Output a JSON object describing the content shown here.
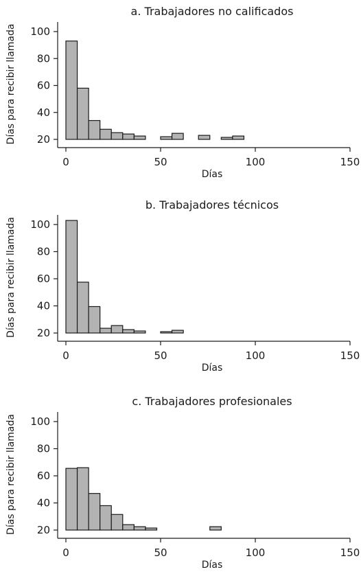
{
  "chart_data": [
    {
      "type": "bar",
      "title": "a. Trabajadores no calificados",
      "xlabel": "Días",
      "ylabel": "Días para recibir llamada",
      "xlim": [
        0,
        150
      ],
      "ylim": [
        20,
        100
      ],
      "xticks": [
        "0",
        "50",
        "100",
        "150"
      ],
      "yticks": [
        "20",
        "40",
        "60",
        "80",
        "100"
      ],
      "grid": false,
      "bins": [
        {
          "x0": 0,
          "x1": 6,
          "value": 93
        },
        {
          "x0": 6,
          "x1": 12,
          "value": 58
        },
        {
          "x0": 12,
          "x1": 18,
          "value": 34
        },
        {
          "x0": 18,
          "x1": 24,
          "value": 27.5
        },
        {
          "x0": 24,
          "x1": 30,
          "value": 25
        },
        {
          "x0": 30,
          "x1": 36,
          "value": 24
        },
        {
          "x0": 36,
          "x1": 42,
          "value": 22.5
        },
        {
          "x0": 50,
          "x1": 56,
          "value": 22
        },
        {
          "x0": 56,
          "x1": 62,
          "value": 24.5
        },
        {
          "x0": 70,
          "x1": 76,
          "value": 23
        },
        {
          "x0": 82,
          "x1": 88,
          "value": 21.5
        },
        {
          "x0": 88,
          "x1": 94,
          "value": 22.5
        }
      ]
    },
    {
      "type": "bar",
      "title": "b. Trabajadores técnicos",
      "xlabel": "Días",
      "ylabel": "Días para recibir llamada",
      "xlim": [
        0,
        150
      ],
      "ylim": [
        20,
        100
      ],
      "xticks": [
        "0",
        "50",
        "100",
        "150"
      ],
      "yticks": [
        "20",
        "40",
        "60",
        "80",
        "100"
      ],
      "grid": false,
      "bins": [
        {
          "x0": 0,
          "x1": 6,
          "value": 103
        },
        {
          "x0": 6,
          "x1": 12,
          "value": 57.5
        },
        {
          "x0": 12,
          "x1": 18,
          "value": 39.5
        },
        {
          "x0": 18,
          "x1": 24,
          "value": 23.5
        },
        {
          "x0": 24,
          "x1": 30,
          "value": 25.5
        },
        {
          "x0": 30,
          "x1": 36,
          "value": 22.5
        },
        {
          "x0": 36,
          "x1": 42,
          "value": 21.5
        },
        {
          "x0": 50,
          "x1": 56,
          "value": 21
        },
        {
          "x0": 56,
          "x1": 62,
          "value": 22
        }
      ]
    },
    {
      "type": "bar",
      "title": "c. Trabajadores profesionales",
      "xlabel": "Días",
      "ylabel": "Días para recibir llamada",
      "xlim": [
        0,
        150
      ],
      "ylim": [
        20,
        100
      ],
      "xticks": [
        "0",
        "50",
        "100",
        "150"
      ],
      "yticks": [
        "20",
        "40",
        "60",
        "80",
        "100"
      ],
      "grid": false,
      "bins": [
        {
          "x0": 0,
          "x1": 6,
          "value": 65.5
        },
        {
          "x0": 6,
          "x1": 12,
          "value": 66
        },
        {
          "x0": 12,
          "x1": 18,
          "value": 47
        },
        {
          "x0": 18,
          "x1": 24,
          "value": 38
        },
        {
          "x0": 24,
          "x1": 30,
          "value": 31.5
        },
        {
          "x0": 30,
          "x1": 36,
          "value": 24
        },
        {
          "x0": 36,
          "x1": 42,
          "value": 22.5
        },
        {
          "x0": 42,
          "x1": 48,
          "value": 21.5
        },
        {
          "x0": 76,
          "x1": 82,
          "value": 22.5
        }
      ]
    }
  ]
}
